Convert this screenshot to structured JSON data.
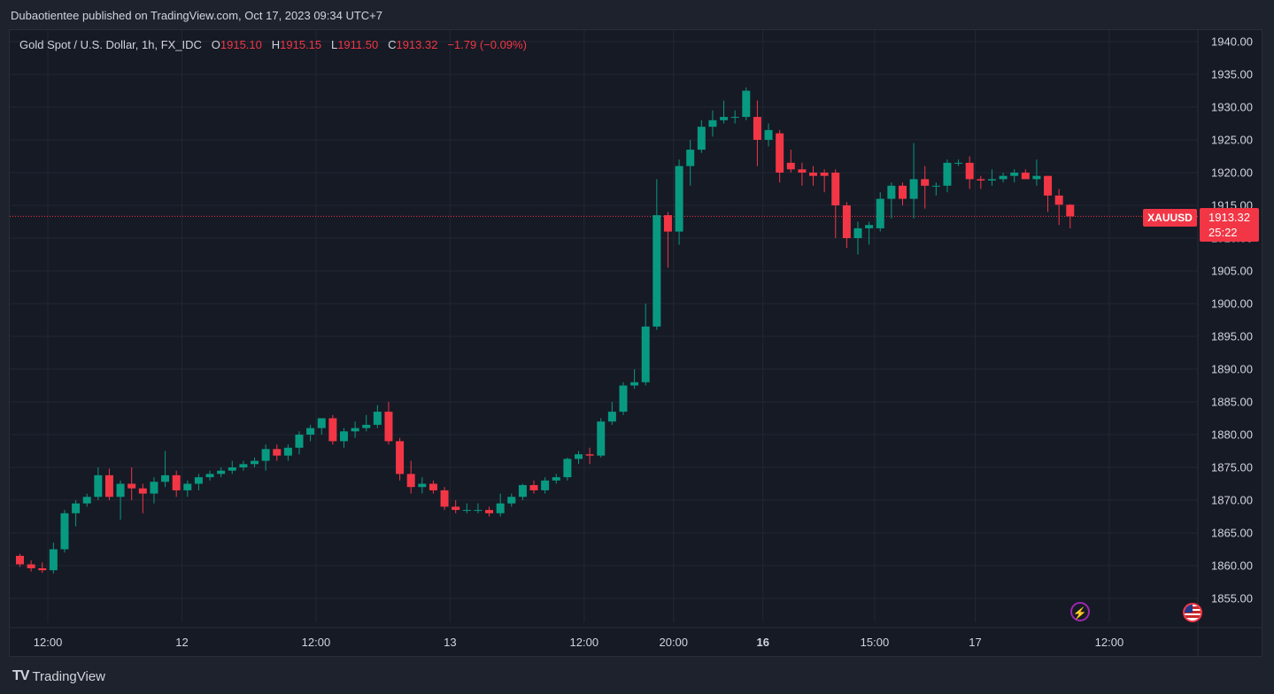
{
  "header": {
    "published_by": "Dubaotientee published on TradingView.com, Oct 17, 2023 09:34 UTC+7"
  },
  "legend": {
    "symbol": "Gold Spot / U.S. Dollar, 1h, FX_IDC",
    "o_label": "O",
    "o_value": "1915.10",
    "h_label": "H",
    "h_value": "1915.15",
    "l_label": "L",
    "l_value": "1911.50",
    "c_label": "C",
    "c_value": "1913.32",
    "change": "−1.79 (−0.09%)"
  },
  "price_tag": {
    "symbol": "XAUUSD",
    "price": "1913.32",
    "countdown": "25:22"
  },
  "footer": {
    "logo": "TV",
    "brand": "TradingView"
  },
  "icons": {
    "event": "lightning-icon",
    "country": "us-flag-icon"
  },
  "colors": {
    "up": "#089981",
    "down": "#f23645",
    "background": "#161a25",
    "grid": "#232733",
    "text": "#d1d4dc"
  },
  "chart_data": {
    "type": "candlestick",
    "title": "Gold Spot / U.S. Dollar, 1h, FX_IDC",
    "ylim": [
      1851,
      1941
    ],
    "grid": true,
    "y_ticks": [
      "1855.00",
      "1860.00",
      "1865.00",
      "1870.00",
      "1875.00",
      "1880.00",
      "1885.00",
      "1890.00",
      "1895.00",
      "1900.00",
      "1905.00",
      "1910.00",
      "1915.00",
      "1920.00",
      "1925.00",
      "1930.00",
      "1935.00",
      "1940.00"
    ],
    "x_ticks": [
      {
        "label": "12:00",
        "index": 2.5,
        "bold": false
      },
      {
        "label": "12",
        "index": 14.5,
        "bold": false
      },
      {
        "label": "12:00",
        "index": 26.5,
        "bold": false
      },
      {
        "label": "13",
        "index": 38.5,
        "bold": false
      },
      {
        "label": "12:00",
        "index": 50.5,
        "bold": false
      },
      {
        "label": "20:00",
        "index": 58.5,
        "bold": false
      },
      {
        "label": "16",
        "index": 66.5,
        "bold": true
      },
      {
        "label": "15:00",
        "index": 76.5,
        "bold": false
      },
      {
        "label": "17",
        "index": 85.5,
        "bold": false
      },
      {
        "label": "12:00",
        "index": 97.5,
        "bold": false
      }
    ],
    "last_price": 1913.32,
    "candles": [
      [
        1861.5,
        1861.8,
        1859.8,
        1860.2
      ],
      [
        1860.2,
        1860.8,
        1859.1,
        1859.6
      ],
      [
        1859.6,
        1860.5,
        1858.9,
        1859.3
      ],
      [
        1859.3,
        1863.5,
        1858.8,
        1862.5
      ],
      [
        1862.5,
        1868.5,
        1862.0,
        1868.0
      ],
      [
        1868.0,
        1870.0,
        1866.0,
        1869.5
      ],
      [
        1869.5,
        1871.0,
        1869.0,
        1870.5
      ],
      [
        1870.5,
        1875.0,
        1870.0,
        1873.8
      ],
      [
        1873.8,
        1874.8,
        1870.0,
        1870.5
      ],
      [
        1870.5,
        1873.0,
        1867.0,
        1872.5
      ],
      [
        1872.5,
        1875.0,
        1870.0,
        1871.8
      ],
      [
        1871.8,
        1872.5,
        1868.0,
        1871.0
      ],
      [
        1871.0,
        1873.5,
        1869.5,
        1872.8
      ],
      [
        1872.8,
        1877.5,
        1872.0,
        1873.8
      ],
      [
        1873.8,
        1874.5,
        1870.5,
        1871.5
      ],
      [
        1871.5,
        1873.0,
        1870.5,
        1872.5
      ],
      [
        1872.5,
        1874.0,
        1871.5,
        1873.5
      ],
      [
        1873.5,
        1874.5,
        1873.0,
        1874.0
      ],
      [
        1874.0,
        1875.0,
        1873.5,
        1874.5
      ],
      [
        1874.5,
        1876.0,
        1874.0,
        1875.0
      ],
      [
        1875.0,
        1876.0,
        1874.5,
        1875.5
      ],
      [
        1875.5,
        1876.5,
        1875.0,
        1876.0
      ],
      [
        1876.0,
        1878.5,
        1874.5,
        1877.8
      ],
      [
        1877.8,
        1878.5,
        1876.0,
        1876.8
      ],
      [
        1876.8,
        1878.5,
        1876.0,
        1878.0
      ],
      [
        1878.0,
        1880.5,
        1877.0,
        1880.0
      ],
      [
        1880.0,
        1881.5,
        1879.0,
        1881.0
      ],
      [
        1881.0,
        1882.5,
        1880.0,
        1882.5
      ],
      [
        1882.5,
        1883.0,
        1878.5,
        1879.0
      ],
      [
        1879.0,
        1881.0,
        1878.0,
        1880.5
      ],
      [
        1880.5,
        1882.0,
        1879.5,
        1881.0
      ],
      [
        1881.0,
        1883.0,
        1880.5,
        1881.5
      ],
      [
        1881.5,
        1884.5,
        1881.0,
        1883.5
      ],
      [
        1883.5,
        1885.0,
        1878.5,
        1879.0
      ],
      [
        1879.0,
        1879.5,
        1873.0,
        1874.0
      ],
      [
        1874.0,
        1876.0,
        1871.0,
        1872.0
      ],
      [
        1872.0,
        1873.5,
        1871.0,
        1872.5
      ],
      [
        1872.5,
        1873.0,
        1871.0,
        1871.5
      ],
      [
        1871.5,
        1872.0,
        1868.5,
        1869.0
      ],
      [
        1869.0,
        1870.0,
        1868.0,
        1868.5
      ],
      [
        1868.5,
        1869.5,
        1868.0,
        1868.5
      ],
      [
        1868.5,
        1869.5,
        1868.0,
        1868.5
      ],
      [
        1868.5,
        1869.0,
        1867.5,
        1868.0
      ],
      [
        1868.0,
        1871.0,
        1867.5,
        1869.5
      ],
      [
        1869.5,
        1871.0,
        1869.0,
        1870.5
      ],
      [
        1870.5,
        1872.5,
        1870.0,
        1872.3
      ],
      [
        1872.3,
        1873.0,
        1871.0,
        1871.5
      ],
      [
        1871.5,
        1873.5,
        1871.0,
        1873.0
      ],
      [
        1873.0,
        1874.0,
        1872.5,
        1873.5
      ],
      [
        1873.5,
        1876.5,
        1873.0,
        1876.3
      ],
      [
        1876.3,
        1877.5,
        1875.5,
        1877.0
      ],
      [
        1877.0,
        1878.0,
        1875.5,
        1876.8
      ],
      [
        1876.8,
        1882.5,
        1876.5,
        1882.0
      ],
      [
        1882.0,
        1885.0,
        1881.5,
        1883.5
      ],
      [
        1883.5,
        1888.0,
        1883.0,
        1887.5
      ],
      [
        1887.5,
        1890.0,
        1887.0,
        1888.0
      ],
      [
        1888.0,
        1900.0,
        1887.5,
        1896.5
      ],
      [
        1896.5,
        1919.0,
        1896.0,
        1913.5
      ],
      [
        1913.5,
        1914.0,
        1905.5,
        1911.0
      ],
      [
        1911.0,
        1922.0,
        1909.0,
        1921.0
      ],
      [
        1921.0,
        1925.0,
        1918.0,
        1923.5
      ],
      [
        1923.5,
        1928.0,
        1923.0,
        1927.0
      ],
      [
        1927.0,
        1929.5,
        1925.5,
        1928.0
      ],
      [
        1928.0,
        1931.0,
        1927.5,
        1928.5
      ],
      [
        1928.5,
        1929.5,
        1927.5,
        1928.5
      ],
      [
        1928.5,
        1933.0,
        1928.0,
        1932.5
      ],
      [
        1928.5,
        1931.0,
        1921.0,
        1925.0
      ],
      [
        1925.0,
        1927.5,
        1924.0,
        1926.5
      ],
      [
        1926.0,
        1926.5,
        1918.5,
        1920.0
      ],
      [
        1921.5,
        1923.5,
        1920.0,
        1920.5
      ],
      [
        1920.5,
        1921.5,
        1918.0,
        1920.0
      ],
      [
        1920.0,
        1921.0,
        1918.0,
        1919.5
      ],
      [
        1920.0,
        1920.5,
        1917.0,
        1919.5
      ],
      [
        1920.0,
        1920.5,
        1910.0,
        1915.0
      ],
      [
        1915.0,
        1915.5,
        1908.5,
        1910.0
      ],
      [
        1910.0,
        1912.5,
        1907.5,
        1911.5
      ],
      [
        1911.5,
        1912.5,
        1909.0,
        1912.0
      ],
      [
        1911.5,
        1917.0,
        1911.0,
        1916.0
      ],
      [
        1916.0,
        1918.5,
        1913.0,
        1918.0
      ],
      [
        1918.0,
        1918.5,
        1915.0,
        1916.0
      ],
      [
        1916.0,
        1924.5,
        1913.0,
        1919.0
      ],
      [
        1919.0,
        1921.0,
        1914.5,
        1918.0
      ],
      [
        1918.0,
        1918.5,
        1916.5,
        1918.0
      ],
      [
        1918.0,
        1922.0,
        1917.0,
        1921.5
      ],
      [
        1921.5,
        1922.0,
        1921.0,
        1921.5
      ],
      [
        1921.5,
        1922.5,
        1917.5,
        1919.0
      ],
      [
        1919.0,
        1919.5,
        1917.5,
        1918.8
      ],
      [
        1918.8,
        1920.5,
        1918.0,
        1919.0
      ],
      [
        1919.0,
        1920.0,
        1918.5,
        1919.5
      ],
      [
        1919.5,
        1920.5,
        1918.5,
        1920.0
      ],
      [
        1920.0,
        1920.5,
        1919.0,
        1919.0
      ],
      [
        1919.0,
        1922.0,
        1918.0,
        1919.5
      ],
      [
        1919.5,
        1919.5,
        1914.0,
        1916.5
      ],
      [
        1916.5,
        1917.5,
        1912.0,
        1915.1
      ],
      [
        1915.1,
        1915.2,
        1911.5,
        1913.32
      ]
    ]
  }
}
